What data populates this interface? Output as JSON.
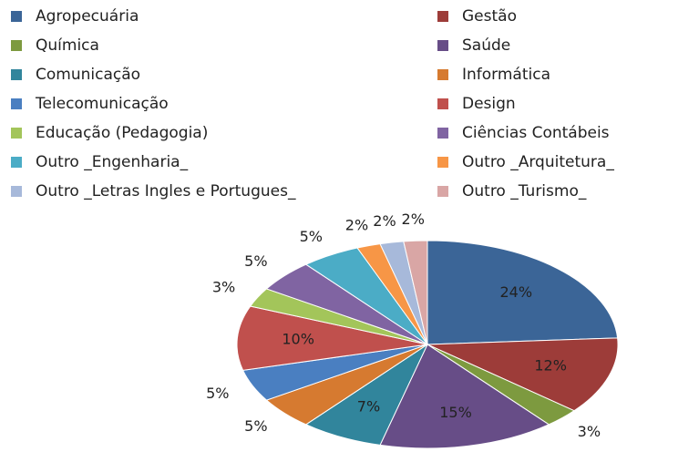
{
  "chart_data": {
    "type": "pie",
    "categories": [
      "Agropecuária",
      "Gestão",
      "Química",
      "Saúde",
      "Comunicação",
      "Informática",
      "Telecomunicação",
      "Design",
      "Educação (Pedagogia)",
      "Ciências Contábeis",
      "Outro _Engenharia_",
      "Outro _Arquitetura_",
      "Outro _Letras Ingles e Portugues_",
      "Outro _Turismo_"
    ],
    "values": [
      24,
      12,
      3,
      15,
      7,
      5,
      5,
      10,
      3,
      5,
      5,
      2,
      2,
      2
    ],
    "value_labels": [
      "24%",
      "12%",
      "3%",
      "15%",
      "7%",
      "5%",
      "5%",
      "10%",
      "3%",
      "5%",
      "5%",
      "2%",
      "2%",
      "2%"
    ],
    "colors": [
      "#3b6597",
      "#9d3c39",
      "#7d9a3f",
      "#674d87",
      "#31859c",
      "#d67a30",
      "#4a7fc1",
      "#c0504d",
      "#a3c55a",
      "#8064a2",
      "#4bacc6",
      "#f79646",
      "#a7b9da",
      "#d9a6a5"
    ],
    "legend": "top"
  }
}
